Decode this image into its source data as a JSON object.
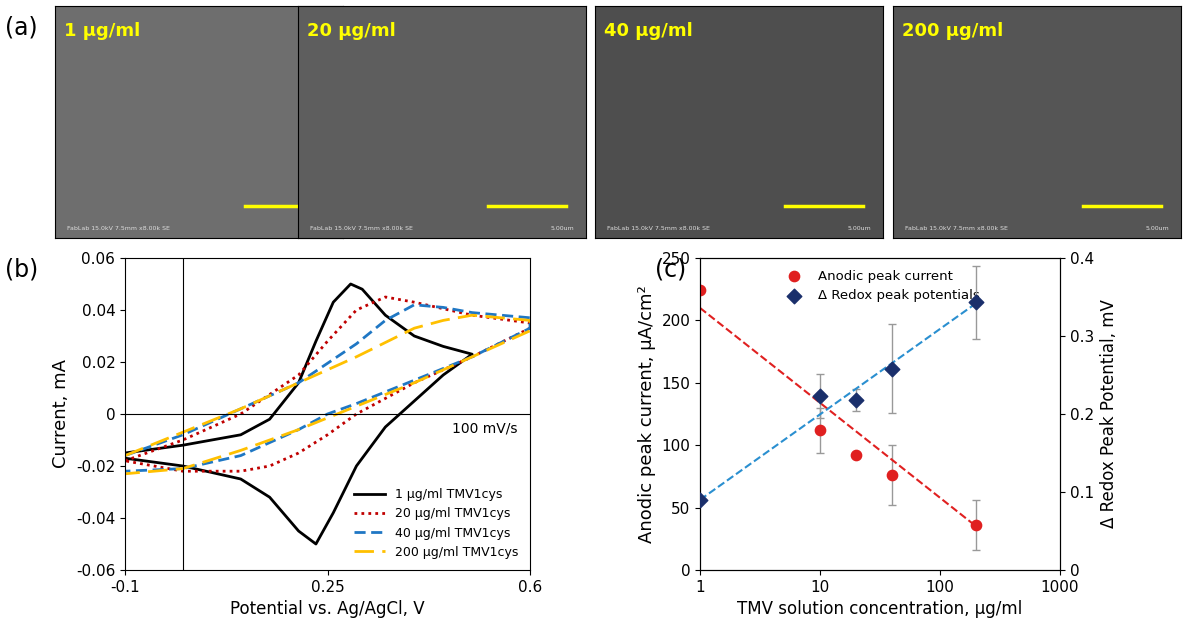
{
  "images": {
    "panel": "(a)",
    "labels": [
      "1 µg/ml",
      "20 µg/ml",
      "40 µg/ml",
      "200 µg/ml"
    ],
    "footer": "FabLab 15.0kV 7.5mm x8.00k SE",
    "scale_label": "5.00um"
  },
  "chart_data": [
    {
      "panel": "(b)",
      "type": "line",
      "x_label": "Potential vs. Ag/AgCl, V",
      "y_label": "Current, mA",
      "annotation": "100 mV/s",
      "xlim": [
        -0.1,
        0.6
      ],
      "xticks": [
        -0.1,
        0.25,
        0.6
      ],
      "ylim": [
        -0.06,
        0.06
      ],
      "yticks": [
        -0.06,
        -0.04,
        -0.02,
        0,
        0.02,
        0.04,
        0.06
      ],
      "legend": "lower right",
      "series": [
        {
          "name": "1 µg/ml TMV1cys",
          "color": "#000000",
          "line_style": "solid",
          "x": [
            -0.1,
            0.0,
            0.1,
            0.15,
            0.2,
            0.23,
            0.26,
            0.29,
            0.31,
            0.35,
            0.4,
            0.45,
            0.5,
            0.45,
            0.4,
            0.35,
            0.3,
            0.26,
            0.23,
            0.2,
            0.15,
            0.1,
            0.0,
            -0.1
          ],
          "values": [
            -0.015,
            -0.012,
            -0.008,
            -0.002,
            0.012,
            0.028,
            0.043,
            0.05,
            0.048,
            0.038,
            0.03,
            0.026,
            0.023,
            0.015,
            0.005,
            -0.005,
            -0.02,
            -0.038,
            -0.05,
            -0.045,
            -0.032,
            -0.025,
            -0.02,
            -0.017
          ]
        },
        {
          "name": "20 µg/ml TMV1cys",
          "color": "#c00000",
          "line_style": "dotted",
          "x": [
            -0.1,
            0.0,
            0.1,
            0.2,
            0.25,
            0.3,
            0.35,
            0.4,
            0.5,
            0.6,
            0.6,
            0.5,
            0.4,
            0.3,
            0.25,
            0.2,
            0.15,
            0.1,
            0.0,
            -0.1
          ],
          "values": [
            -0.018,
            -0.01,
            0.0,
            0.015,
            0.028,
            0.04,
            0.045,
            0.043,
            0.038,
            0.035,
            0.033,
            0.022,
            0.012,
            0.0,
            -0.008,
            -0.015,
            -0.02,
            -0.022,
            -0.022,
            -0.018
          ]
        },
        {
          "name": "40 µg/ml TMV1cys",
          "color": "#1f77c4",
          "line_style": "dashed",
          "x": [
            -0.1,
            0.0,
            0.1,
            0.2,
            0.3,
            0.35,
            0.4,
            0.45,
            0.5,
            0.6,
            0.6,
            0.5,
            0.4,
            0.3,
            0.25,
            0.2,
            0.1,
            0.0,
            -0.1
          ],
          "values": [
            -0.016,
            -0.008,
            0.002,
            0.012,
            0.027,
            0.036,
            0.042,
            0.041,
            0.039,
            0.037,
            0.033,
            0.022,
            0.013,
            0.004,
            0.0,
            -0.006,
            -0.016,
            -0.021,
            -0.022
          ]
        },
        {
          "name": "200 µg/ml TMV1cys",
          "color": "#ffc000",
          "line_style": "long_dashed",
          "x": [
            -0.1,
            0.0,
            0.1,
            0.2,
            0.3,
            0.4,
            0.45,
            0.5,
            0.6,
            0.6,
            0.5,
            0.4,
            0.3,
            0.2,
            0.1,
            0.0,
            -0.1
          ],
          "values": [
            -0.016,
            -0.007,
            0.002,
            0.012,
            0.022,
            0.033,
            0.036,
            0.038,
            0.036,
            0.032,
            0.022,
            0.012,
            0.003,
            -0.006,
            -0.014,
            -0.021,
            -0.023
          ]
        }
      ]
    },
    {
      "panel": "(c)",
      "type": "scatter",
      "log": "x",
      "x_label": "TMV solution concentration, µg/ml",
      "y_label": "Anodic peak current, µA/cm²",
      "y2_label": "Δ Redox Peak Potential, mV",
      "xlim": [
        1,
        1000
      ],
      "xticks": [
        1,
        10,
        100,
        1000
      ],
      "ylim": [
        0,
        250
      ],
      "yticks": [
        0,
        50,
        100,
        150,
        200,
        250
      ],
      "y2lim": [
        0,
        0.4
      ],
      "y2ticks": [
        0,
        0.1,
        0.2,
        0.3,
        0.4
      ],
      "legend": "upper center",
      "series": [
        {
          "name": "Anodic peak current",
          "color": "#e02020",
          "marker": "circle",
          "x": [
            1,
            10,
            20,
            40,
            200
          ],
          "values": [
            224,
            112,
            92,
            76,
            36
          ],
          "errors": [
            0,
            18,
            0,
            24,
            20
          ],
          "fit_x": [
            1,
            200
          ],
          "fit_values": [
            210,
            35
          ]
        },
        {
          "name": "Δ Redox peak potentials",
          "color": "#1a2f6b",
          "marker": "diamond",
          "axis": "y2",
          "x": [
            1,
            10,
            20,
            40,
            200
          ],
          "values": [
            0.09,
            0.223,
            0.218,
            0.258,
            0.343
          ],
          "errors": [
            0,
            0.028,
            0.014,
            0.057,
            0.047
          ],
          "fit_x": [
            1,
            200
          ],
          "fit_values": [
            0.09,
            0.342
          ],
          "fit_color": "#2a8fd0"
        }
      ]
    }
  ]
}
